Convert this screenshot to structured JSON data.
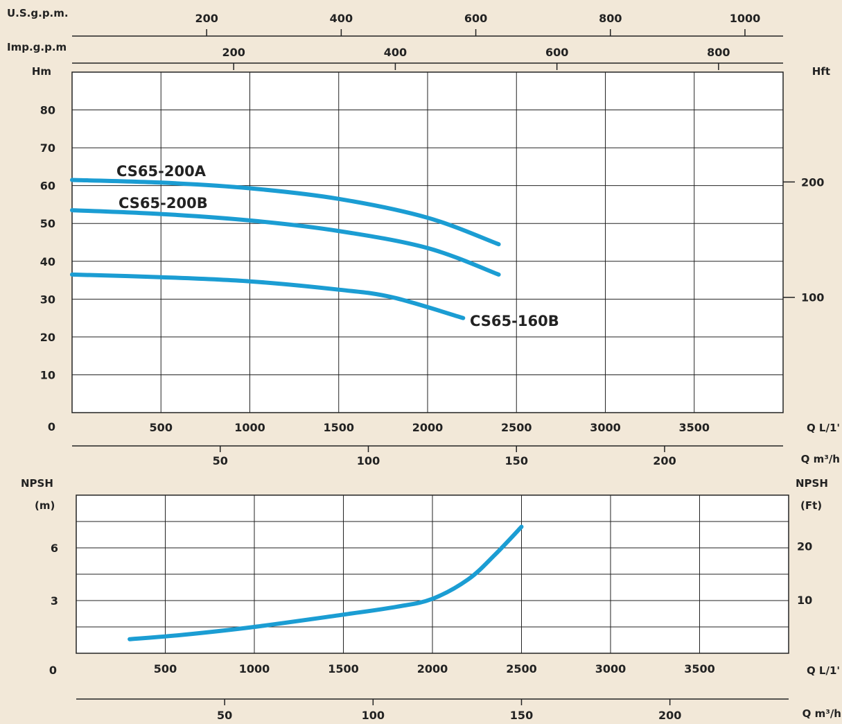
{
  "colors": {
    "background": "#f2e8d8",
    "curve": "#1b9dd3",
    "grid": "#222222",
    "plot_bg": "#ffffff"
  },
  "chart_data": [
    {
      "id": "head",
      "type": "line",
      "grid": true,
      "xlabel": "Q L/1'",
      "ylabel": "Hm",
      "ylabel_right": "Hft",
      "x_secondary_label": "Q m³/h",
      "top_axis1_label": "U.S.g.p.m.",
      "top_axis2_label": "Imp.g.p.m",
      "x_ticks": [
        "0",
        "500",
        "1000",
        "1500",
        "2000",
        "2500",
        "3000",
        "3500"
      ],
      "y_ticks": [
        "10",
        "20",
        "30",
        "40",
        "50",
        "60",
        "70",
        "80"
      ],
      "y_right_ticks": [
        "100",
        "200"
      ],
      "top_axis1_ticks": [
        "200",
        "400",
        "600",
        "800",
        "1000"
      ],
      "top_axis2_ticks": [
        "200",
        "400",
        "600",
        "800"
      ],
      "bottom_m3h_ticks": [
        "50",
        "100",
        "150",
        "200"
      ],
      "xlim": [
        0,
        4000
      ],
      "ylim": [
        0,
        90
      ],
      "series": [
        {
          "name": "CS65-200A",
          "x": [
            0,
            500,
            1000,
            1500,
            2000,
            2400
          ],
          "y": [
            61.5,
            60.8,
            59.3,
            56.5,
            51.5,
            44.5
          ]
        },
        {
          "name": "CS65-200B",
          "x": [
            0,
            500,
            1000,
            1500,
            2000,
            2400
          ],
          "y": [
            53.5,
            52.5,
            50.8,
            48,
            43.5,
            36.5
          ]
        },
        {
          "name": "CS65-160B",
          "x": [
            0,
            500,
            1000,
            1500,
            1800,
            2200
          ],
          "y": [
            36.5,
            35.8,
            34.7,
            32.5,
            30.5,
            25
          ]
        }
      ]
    },
    {
      "id": "npsh",
      "type": "line",
      "grid": true,
      "xlabel": "Q L/1'",
      "ylabel": [
        "NPSH",
        "(m)"
      ],
      "ylabel_right": [
        "NPSH",
        "(Ft)"
      ],
      "x_secondary_label": "Q m³/h",
      "x_ticks": [
        "0",
        "500",
        "1000",
        "1500",
        "2000",
        "2500",
        "3000",
        "3500"
      ],
      "y_ticks": [
        "3",
        "6"
      ],
      "y_right_ticks": [
        "10",
        "20"
      ],
      "bottom_m3h_ticks": [
        "50",
        "100",
        "150",
        "200"
      ],
      "xlim": [
        0,
        4000
      ],
      "ylim": [
        0,
        9
      ],
      "series": [
        {
          "name": "",
          "x": [
            300,
            600,
            1000,
            1500,
            1800,
            2000,
            2200,
            2350,
            2500
          ],
          "y": [
            0.8,
            1.05,
            1.5,
            2.2,
            2.65,
            3.1,
            4.2,
            5.6,
            7.2
          ]
        }
      ]
    }
  ]
}
